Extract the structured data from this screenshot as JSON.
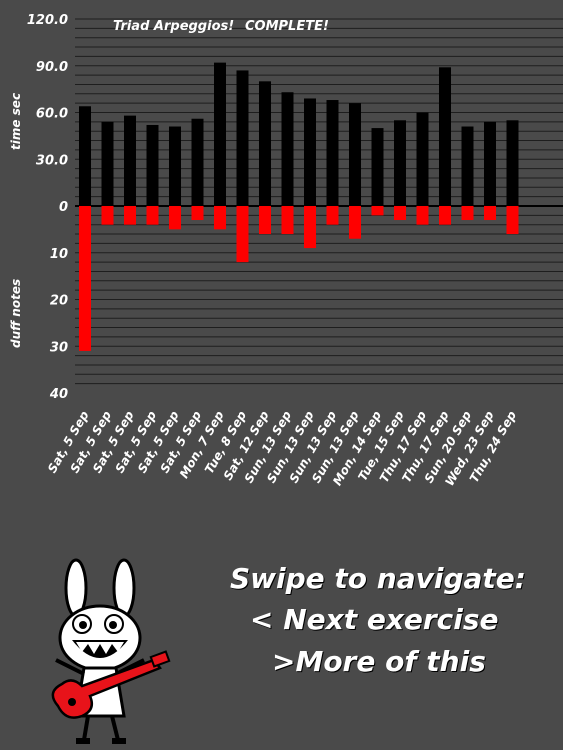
{
  "chart_data": {
    "type": "bar",
    "title": "Triad Arpeggios!",
    "status": "COMPLETE!",
    "categories": [
      "Sat, 5 Sep",
      "Sat, 5 Sep",
      "Sat, 5 Sep",
      "Sat, 5 Sep",
      "Sat, 5 Sep",
      "Sat, 5 Sep",
      "Mon, 7 Sep",
      "Tue, 8 Sep",
      "Sat, 12 Sep",
      "Sun, 13 Sep",
      "Sun, 13 Sep",
      "Sun, 13 Sep",
      "Sun, 13 Sep",
      "Mon, 14 Sep",
      "Tue, 15 Sep",
      "Thu, 17 Sep",
      "Thu, 17 Sep",
      "Sun, 20 Sep",
      "Wed, 23 Sep",
      "Thu, 24 Sep"
    ],
    "series": [
      {
        "name": "time sec",
        "color": "#000000",
        "values": [
          64,
          54,
          58,
          52,
          51,
          56,
          92,
          87,
          80,
          73,
          69,
          68,
          66,
          50,
          55,
          60,
          89,
          51,
          54,
          55
        ]
      },
      {
        "name": "duff notes",
        "color": "#ff0000",
        "values": [
          31,
          4,
          4,
          4,
          5,
          3,
          5,
          12,
          6,
          6,
          9,
          4,
          7,
          2,
          3,
          4,
          4,
          3,
          3,
          6
        ]
      }
    ],
    "ylabel_top": "time sec",
    "ylabel_bottom": "duff notes",
    "y_top_ticks": [
      "120.0",
      "90.0",
      "60.0",
      "30.0",
      "0"
    ],
    "y_bottom_ticks": [
      "10",
      "20",
      "30",
      "40"
    ],
    "ylim_top": [
      0,
      120
    ],
    "ylim_bottom": [
      0,
      40
    ],
    "grid": true
  },
  "navigation": {
    "heading": "Swipe to navigate:",
    "next_label": "<  Next exercise",
    "more_label": ">More of this"
  },
  "mascot": {
    "icon": "rabbit-guitarist-icon",
    "guitar_color": "#e8131a"
  },
  "colors": {
    "background": "#4a4a4a",
    "grid": "#000000",
    "text": "#ffffff"
  }
}
